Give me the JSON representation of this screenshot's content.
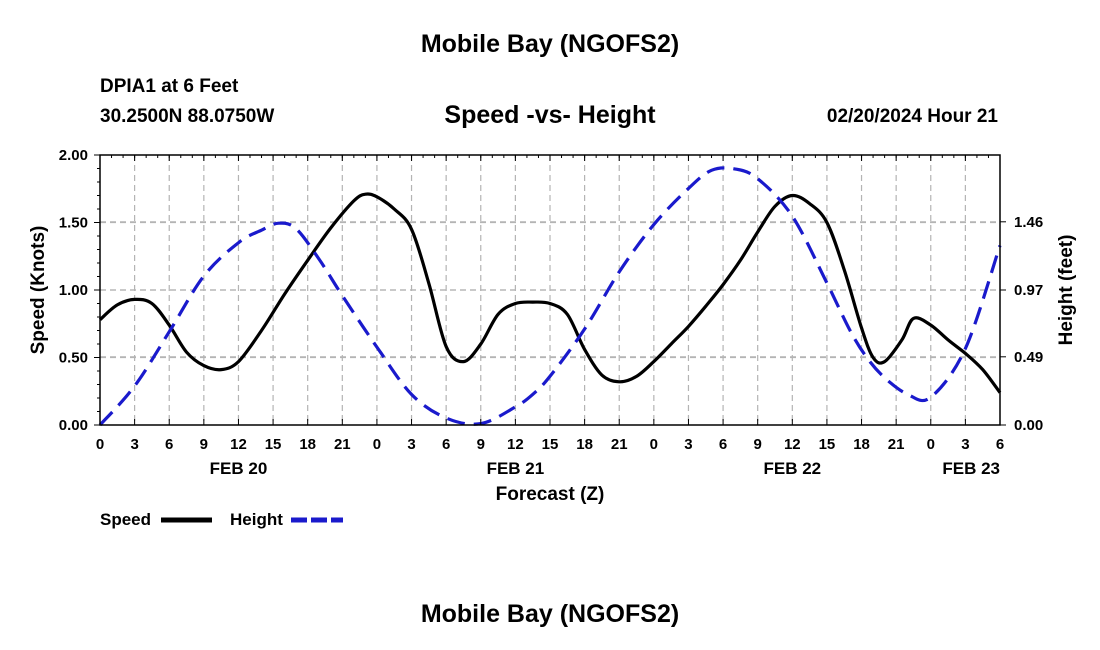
{
  "header": {
    "title": "Mobile Bay (NGOFS2)",
    "station": "DPIA1 at 6 Feet",
    "coords": "30.2500N  88.0750W",
    "subtitle": "Speed -vs- Height",
    "datetime": "02/20/2024 Hour 21"
  },
  "footer": {
    "title": "Mobile Bay (NGOFS2)"
  },
  "chart_data": {
    "type": "line",
    "title": "Speed -vs- Height",
    "xlabel": "Forecast (Z)",
    "ylabel_left": "Speed (Knots)",
    "ylabel_right": "Height (feet)",
    "x_hours": [
      0,
      78
    ],
    "x_tick_labels": [
      "0",
      "3",
      "6",
      "9",
      "12",
      "15",
      "18",
      "21",
      "0",
      "3",
      "6",
      "9",
      "12",
      "15",
      "18",
      "21",
      "0",
      "3",
      "6",
      "9",
      "12",
      "15",
      "18",
      "21",
      "0",
      "3",
      "6"
    ],
    "date_labels": [
      {
        "label": "FEB 20",
        "hour": 12
      },
      {
        "label": "FEB 21",
        "hour": 36
      },
      {
        "label": "FEB 22",
        "hour": 60
      },
      {
        "label": "FEB 23",
        "hour": 78
      }
    ],
    "y_left": {
      "range": [
        0,
        2.0
      ],
      "ticks": [
        "0.00",
        "0.50",
        "1.00",
        "1.50",
        "2.00"
      ]
    },
    "y_right": {
      "range": [
        0,
        1.94
      ],
      "ticks": [
        "0.00",
        "0.49",
        "0.97",
        "1.46"
      ]
    },
    "grid": true,
    "legend": {
      "placement": "bottom-left",
      "speed_label": "Speed",
      "height_label": "Height"
    },
    "series": [
      {
        "name": "Speed",
        "axis": "left",
        "color": "#000000",
        "dash": false,
        "x": [
          0,
          1.5,
          3,
          4.5,
          6,
          7.5,
          9,
          10.5,
          12,
          14,
          16,
          18,
          20,
          22,
          23,
          24,
          25.5,
          27,
          28.5,
          30,
          31.5,
          33,
          34.5,
          36,
          37.5,
          39,
          40.5,
          42,
          43.5,
          45,
          46.5,
          48,
          49.5,
          51,
          52.5,
          54,
          55.5,
          57,
          58.5,
          60,
          61.5,
          63,
          64.5,
          66,
          67,
          68,
          69.5,
          70.5,
          72,
          73.5,
          75,
          76.5,
          78
        ],
        "values": [
          0.78,
          0.89,
          0.93,
          0.9,
          0.74,
          0.54,
          0.44,
          0.41,
          0.47,
          0.7,
          0.97,
          1.22,
          1.46,
          1.66,
          1.71,
          1.69,
          1.6,
          1.45,
          1.05,
          0.58,
          0.47,
          0.6,
          0.82,
          0.9,
          0.91,
          0.9,
          0.82,
          0.56,
          0.37,
          0.32,
          0.36,
          0.47,
          0.6,
          0.73,
          0.88,
          1.04,
          1.22,
          1.43,
          1.62,
          1.7,
          1.64,
          1.5,
          1.15,
          0.72,
          0.5,
          0.47,
          0.63,
          0.79,
          0.74,
          0.63,
          0.53,
          0.41,
          0.24
        ]
      },
      {
        "name": "Height",
        "axis": "right",
        "color": "#1a1acc",
        "dash": true,
        "x": [
          0,
          3,
          6,
          9,
          12,
          14,
          15.5,
          17,
          19,
          21,
          24,
          27,
          30,
          33,
          36,
          37.5,
          39,
          42,
          45,
          48,
          51,
          53,
          55,
          57,
          60,
          63,
          65,
          66.5,
          68,
          70,
          72,
          75,
          78
        ],
        "values": [
          0.0,
          0.28,
          0.67,
          1.07,
          1.31,
          1.4,
          1.45,
          1.41,
          1.19,
          0.93,
          0.56,
          0.22,
          0.05,
          0.01,
          0.13,
          0.22,
          0.35,
          0.69,
          1.1,
          1.44,
          1.7,
          1.83,
          1.84,
          1.77,
          1.5,
          1.02,
          0.68,
          0.48,
          0.34,
          0.22,
          0.2,
          0.55,
          1.29
        ]
      }
    ]
  }
}
